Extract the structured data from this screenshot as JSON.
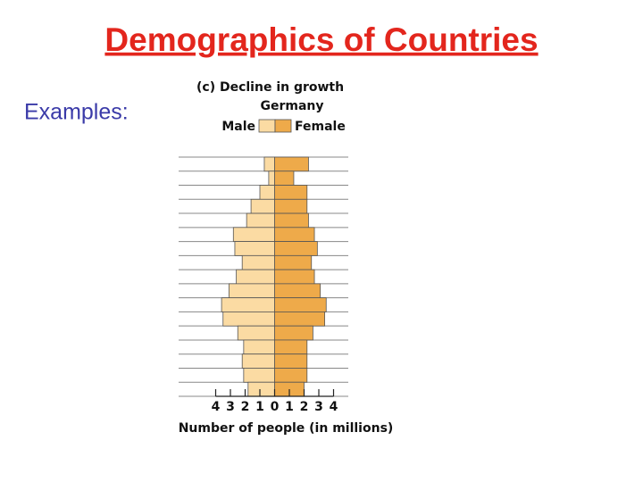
{
  "slide": {
    "title": "Demographics of Countries",
    "label": "Examples:"
  },
  "chart_data": {
    "type": "pyramid",
    "title": "(c) Decline in growth",
    "subtitle": "Germany",
    "x_label": "Number of people (in millions)",
    "categories": [
      null,
      null,
      null,
      null,
      null,
      null,
      null,
      null,
      null,
      null,
      null,
      null,
      null,
      null,
      null,
      null,
      null
    ],
    "series": [
      {
        "name": "Male",
        "side": "left",
        "color": "#fbdba3",
        "values": [
          0.7,
          0.4,
          1.0,
          1.6,
          1.9,
          2.8,
          2.7,
          2.2,
          2.6,
          3.1,
          3.6,
          3.5,
          2.5,
          2.1,
          2.2,
          2.1,
          1.8
        ]
      },
      {
        "name": "Female",
        "side": "right",
        "color": "#eeaa4a",
        "values": [
          2.3,
          1.3,
          2.2,
          2.2,
          2.3,
          2.7,
          2.9,
          2.5,
          2.7,
          3.1,
          3.5,
          3.4,
          2.6,
          2.2,
          2.2,
          2.2,
          2.0
        ]
      }
    ],
    "xlim": [
      -4,
      4
    ],
    "xticks": [
      {
        "value": -4,
        "label": "4"
      },
      {
        "value": -3,
        "label": "3"
      },
      {
        "value": -2,
        "label": "2"
      },
      {
        "value": -1,
        "label": "1"
      },
      0,
      1,
      2,
      3,
      4
    ]
  }
}
